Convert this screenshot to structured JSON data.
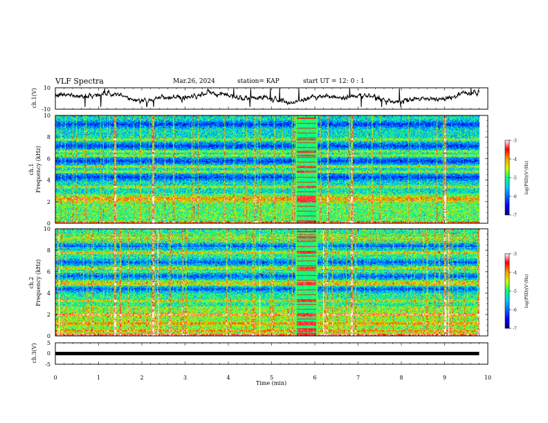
{
  "header": {
    "title": "VLF Spectra",
    "date": "Mar.26, 2024",
    "station": "station= KAP",
    "start": "start  UT =   12: 0  : 1"
  },
  "chart_data": [
    {
      "type": "line",
      "panel": "ch1-waveform",
      "ylabel": "ch.1(V)",
      "ylim": [
        -10,
        10
      ],
      "yticks": [
        "10",
        "-10"
      ],
      "xlim": [
        0,
        10
      ],
      "data_extent_min": [
        0,
        9.8
      ],
      "note_values_approx": "noisy waveform oscillating roughly between -5 and 7 V"
    },
    {
      "type": "heatmap",
      "panel": "ch1-spectrogram",
      "ylabel": "ch.1 Frequency (kHz)",
      "ylim": [
        0,
        10
      ],
      "yticks": [
        "0",
        "2",
        "4",
        "6",
        "8",
        "10"
      ],
      "xlim": [
        0,
        10
      ],
      "colorbar": {
        "label": "log(PSD)(V²/Hz)",
        "range": [
          -7,
          -3
        ],
        "ticks": [
          "-3",
          "-4",
          "-5",
          "-6",
          "-7"
        ]
      },
      "background_level": -5.3,
      "bright_bands_khz": [
        2.2,
        2.4,
        3.4,
        4.8,
        5.3,
        6.3,
        6.7,
        7.8
      ],
      "quiet_bands_khz": [
        4.3,
        5.8,
        7.2,
        9.2
      ],
      "strong_vertical_lines_min": [
        1.38,
        2.25,
        6.85,
        9.0
      ],
      "calibration_window_min": [
        5.55,
        6.05
      ]
    },
    {
      "type": "heatmap",
      "panel": "ch2-spectrogram",
      "ylabel": "ch.2 Frequency (kHz)",
      "ylim": [
        0,
        10
      ],
      "yticks": [
        "0",
        "2",
        "4",
        "6",
        "8",
        "10"
      ],
      "xlim": [
        0,
        10
      ],
      "colorbar": {
        "label": "log(PSD)(V²/Hz)",
        "range": [
          -7,
          -3
        ],
        "ticks": [
          "-3",
          "-4",
          "-5",
          "-6",
          "-7"
        ]
      },
      "background_level": -5.1,
      "bright_bands_khz": [
        0.5,
        1.2,
        2.0,
        3.3,
        4.8,
        5.0,
        6.4,
        7.8,
        9.2
      ],
      "quiet_bands_khz": [
        4.4,
        5.6,
        6.9,
        8.4
      ],
      "strong_vertical_lines_min": [
        1.38,
        2.25,
        6.85,
        9.0
      ],
      "calibration_window_min": [
        5.55,
        6.05
      ]
    },
    {
      "type": "line",
      "panel": "ch3-waveform",
      "ylabel": "ch.3(V)",
      "ylim": [
        -5,
        5
      ],
      "yticks": [
        "5",
        "0",
        "-5"
      ],
      "xlim": [
        0,
        10
      ],
      "level": 0,
      "data_extent_min": [
        0,
        9.8
      ]
    }
  ],
  "xaxis": {
    "label": "Time  (min)",
    "ticks": [
      "0",
      "1",
      "2",
      "3",
      "4",
      "5",
      "6",
      "7",
      "8",
      "9",
      "10"
    ]
  }
}
